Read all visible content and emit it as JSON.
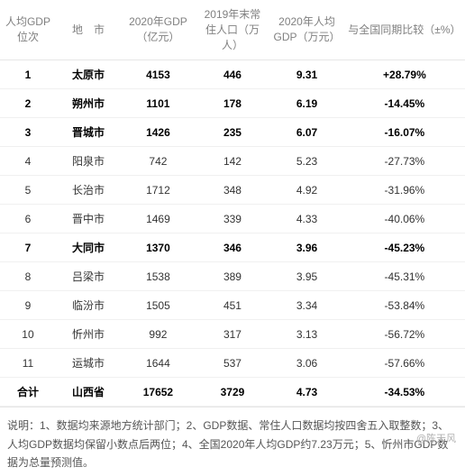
{
  "columns": [
    "人均GDP位次",
    "地　市",
    "2020年GDP（亿元）",
    "2019年末常住人口（万人）",
    "2020年人均GDP（万元）",
    "与全国同期比较（±%）"
  ],
  "rows": [
    {
      "rank": "1",
      "city": "太原市",
      "gdp": "4153",
      "pop": "446",
      "pcgdp": "9.31",
      "diff": "+28.79%",
      "bold": true
    },
    {
      "rank": "2",
      "city": "朔州市",
      "gdp": "1101",
      "pop": "178",
      "pcgdp": "6.19",
      "diff": "-14.45%",
      "bold": true
    },
    {
      "rank": "3",
      "city": "晋城市",
      "gdp": "1426",
      "pop": "235",
      "pcgdp": "6.07",
      "diff": "-16.07%",
      "bold": true
    },
    {
      "rank": "4",
      "city": "阳泉市",
      "gdp": "742",
      "pop": "142",
      "pcgdp": "5.23",
      "diff": "-27.73%",
      "bold": false
    },
    {
      "rank": "5",
      "city": "长治市",
      "gdp": "1712",
      "pop": "348",
      "pcgdp": "4.92",
      "diff": "-31.96%",
      "bold": false
    },
    {
      "rank": "6",
      "city": "晋中市",
      "gdp": "1469",
      "pop": "339",
      "pcgdp": "4.33",
      "diff": "-40.06%",
      "bold": false
    },
    {
      "rank": "7",
      "city": "大同市",
      "gdp": "1370",
      "pop": "346",
      "pcgdp": "3.96",
      "diff": "-45.23%",
      "bold": true
    },
    {
      "rank": "8",
      "city": "吕梁市",
      "gdp": "1538",
      "pop": "389",
      "pcgdp": "3.95",
      "diff": "-45.31%",
      "bold": false
    },
    {
      "rank": "9",
      "city": "临汾市",
      "gdp": "1505",
      "pop": "451",
      "pcgdp": "3.34",
      "diff": "-53.84%",
      "bold": false
    },
    {
      "rank": "10",
      "city": "忻州市",
      "gdp": "992",
      "pop": "317",
      "pcgdp": "3.13",
      "diff": "-56.72%",
      "bold": false
    },
    {
      "rank": "11",
      "city": "运城市",
      "gdp": "1644",
      "pop": "537",
      "pcgdp": "3.06",
      "diff": "-57.66%",
      "bold": false
    }
  ],
  "total": {
    "rank": "合计",
    "city": "山西省",
    "gdp": "17652",
    "pop": "3729",
    "pcgdp": "4.73",
    "diff": "-34.53%"
  },
  "footnote": "说明：1、数据均来源地方统计部门；2、GDP数据、常住人口数据均按四舍五入取整数；3、人均GDP数据均保留小数点后两位；4、全国2020年人均GDP约7.23万元；5、忻州市GDP数据为总量预测值。",
  "watermark": "@陈天风",
  "colors": {
    "header_text": "#808080",
    "row_text": "#333333",
    "bold_text": "#000000",
    "border": "#e6e6e6",
    "row_border": "#f0f0f0",
    "footnote_text": "#555555",
    "watermark_text": "#b0b0b0",
    "background": "#ffffff"
  }
}
